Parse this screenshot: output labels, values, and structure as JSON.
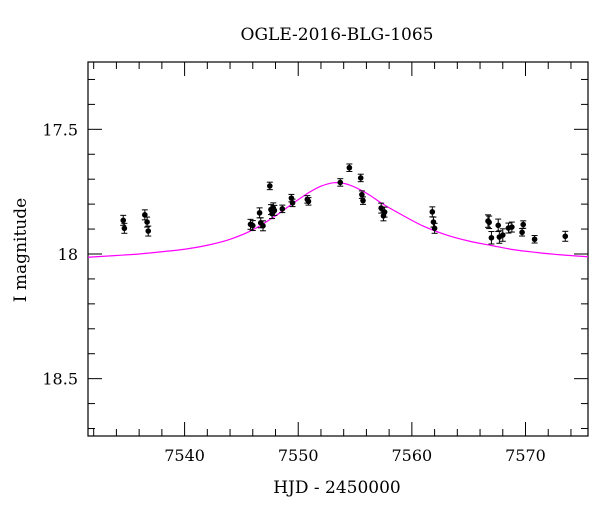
{
  "chart_data": {
    "type": "scatter",
    "title": "OGLE-2016-BLG-1065",
    "xlabel": "HJD - 2450000",
    "ylabel": "I magnitude",
    "xlim": [
      7531.5,
      7575.5
    ],
    "ylim": [
      18.73,
      17.23
    ],
    "y_inverted": true,
    "grid": false,
    "x_ticks": [
      7540,
      7550,
      7560,
      7570
    ],
    "x_ticklabels": [
      "7540",
      "7550",
      "7560",
      "7570"
    ],
    "y_ticks": [
      17.5,
      18,
      18.5
    ],
    "y_ticklabels": [
      "17.5",
      "18",
      "18.5"
    ],
    "colors": {
      "points": "#000000",
      "model": "#ff00ff",
      "axes": "#000000"
    },
    "series": [
      {
        "kind": "points-with-errorbars",
        "x": [
          7534.6,
          7534.7,
          7536.5,
          7536.7,
          7536.8,
          7545.8,
          7546.0,
          7546.6,
          7546.7,
          7546.9,
          7547.5,
          7547.6,
          7547.7,
          7547.8,
          7547.9,
          7548.6,
          7549.4,
          7549.5,
          7550.8,
          7550.9,
          7553.7,
          7554.5,
          7555.5,
          7555.6,
          7555.7,
          7557.3,
          7557.5,
          7557.6,
          7561.8,
          7561.9,
          7562.0,
          7566.7,
          7566.8,
          7567.0,
          7567.6,
          7567.7,
          7568.0,
          7568.5,
          7568.8,
          7569.7,
          7569.8,
          7570.8,
          7573.5
        ],
        "y": [
          17.865,
          17.897,
          17.843,
          17.872,
          17.908,
          17.881,
          17.886,
          17.835,
          17.875,
          17.887,
          17.727,
          17.822,
          17.838,
          17.815,
          17.825,
          17.819,
          17.776,
          17.795,
          17.781,
          17.789,
          17.713,
          17.654,
          17.695,
          17.762,
          17.786,
          17.816,
          17.847,
          17.832,
          17.831,
          17.872,
          17.897,
          17.868,
          17.873,
          17.935,
          17.885,
          17.932,
          17.924,
          17.896,
          17.892,
          17.913,
          17.882,
          17.941,
          17.929
        ],
        "yerr": [
          0.02,
          0.02,
          0.02,
          0.02,
          0.02,
          0.02,
          0.02,
          0.02,
          0.02,
          0.02,
          0.015,
          0.02,
          0.02,
          0.02,
          0.02,
          0.015,
          0.015,
          0.015,
          0.015,
          0.015,
          0.015,
          0.015,
          0.015,
          0.015,
          0.015,
          0.02,
          0.02,
          0.02,
          0.02,
          0.02,
          0.02,
          0.025,
          0.025,
          0.025,
          0.025,
          0.025,
          0.025,
          0.02,
          0.02,
          0.015,
          0.015,
          0.015,
          0.02
        ]
      },
      {
        "kind": "model-curve",
        "peak_x": 7553.2,
        "peak_y": 17.714,
        "baseline_y": 18.03,
        "x": [
          7531.5,
          7534,
          7536,
          7538,
          7540,
          7542,
          7544,
          7546,
          7548,
          7549.5,
          7551,
          7552,
          7553.2,
          7554.5,
          7556,
          7557.5,
          7559,
          7561,
          7563,
          7565,
          7567,
          7569,
          7571,
          7573,
          7575.5
        ],
        "y": [
          18.013,
          18.006,
          18.0,
          17.991,
          17.981,
          17.965,
          17.941,
          17.903,
          17.847,
          17.798,
          17.752,
          17.728,
          17.714,
          17.723,
          17.756,
          17.801,
          17.84,
          17.888,
          17.923,
          17.948,
          17.966,
          17.983,
          17.994,
          18.003,
          18.011
        ]
      }
    ]
  }
}
